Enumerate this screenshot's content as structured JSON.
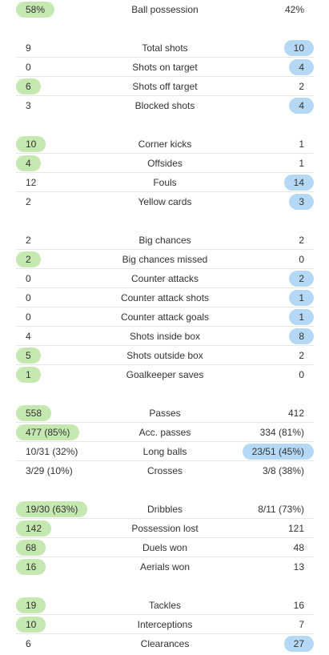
{
  "colors": {
    "home_highlight": "#c4e8b0",
    "away_highlight": "#b4d8f6",
    "divider": "#e6e6e6",
    "text": "#333333"
  },
  "groups": [
    [
      {
        "label": "Ball possession",
        "home": "58%",
        "away": "42%",
        "highlight": "home"
      }
    ],
    [
      {
        "label": "Total shots",
        "home": "9",
        "away": "10",
        "highlight": "away"
      },
      {
        "label": "Shots on target",
        "home": "0",
        "away": "4",
        "highlight": "away"
      },
      {
        "label": "Shots off target",
        "home": "6",
        "away": "2",
        "highlight": "home"
      },
      {
        "label": "Blocked shots",
        "home": "3",
        "away": "4",
        "highlight": "away"
      }
    ],
    [
      {
        "label": "Corner kicks",
        "home": "10",
        "away": "1",
        "highlight": "home"
      },
      {
        "label": "Offsides",
        "home": "4",
        "away": "1",
        "highlight": "home"
      },
      {
        "label": "Fouls",
        "home": "12",
        "away": "14",
        "highlight": "away"
      },
      {
        "label": "Yellow cards",
        "home": "2",
        "away": "3",
        "highlight": "away"
      }
    ],
    [
      {
        "label": "Big chances",
        "home": "2",
        "away": "2",
        "highlight": "none"
      },
      {
        "label": "Big chances missed",
        "home": "2",
        "away": "0",
        "highlight": "home"
      },
      {
        "label": "Counter attacks",
        "home": "0",
        "away": "2",
        "highlight": "away"
      },
      {
        "label": "Counter attack shots",
        "home": "0",
        "away": "1",
        "highlight": "away"
      },
      {
        "label": "Counter attack goals",
        "home": "0",
        "away": "1",
        "highlight": "away"
      },
      {
        "label": "Shots inside box",
        "home": "4",
        "away": "8",
        "highlight": "away"
      },
      {
        "label": "Shots outside box",
        "home": "5",
        "away": "2",
        "highlight": "home"
      },
      {
        "label": "Goalkeeper saves",
        "home": "1",
        "away": "0",
        "highlight": "home"
      }
    ],
    [
      {
        "label": "Passes",
        "home": "558",
        "away": "412",
        "highlight": "home"
      },
      {
        "label": "Acc. passes",
        "home": "477 (85%)",
        "away": "334 (81%)",
        "highlight": "home"
      },
      {
        "label": "Long balls",
        "home": "10/31 (32%)",
        "away": "23/51 (45%)",
        "highlight": "away"
      },
      {
        "label": "Crosses",
        "home": "3/29 (10%)",
        "away": "3/8 (38%)",
        "highlight": "none"
      }
    ],
    [
      {
        "label": "Dribbles",
        "home": "19/30 (63%)",
        "away": "8/11 (73%)",
        "highlight": "home"
      },
      {
        "label": "Possession lost",
        "home": "142",
        "away": "121",
        "highlight": "home"
      },
      {
        "label": "Duels won",
        "home": "68",
        "away": "48",
        "highlight": "home"
      },
      {
        "label": "Aerials won",
        "home": "16",
        "away": "13",
        "highlight": "home"
      }
    ],
    [
      {
        "label": "Tackles",
        "home": "19",
        "away": "16",
        "highlight": "home"
      },
      {
        "label": "Interceptions",
        "home": "10",
        "away": "7",
        "highlight": "home"
      },
      {
        "label": "Clearances",
        "home": "6",
        "away": "27",
        "highlight": "away"
      }
    ]
  ]
}
